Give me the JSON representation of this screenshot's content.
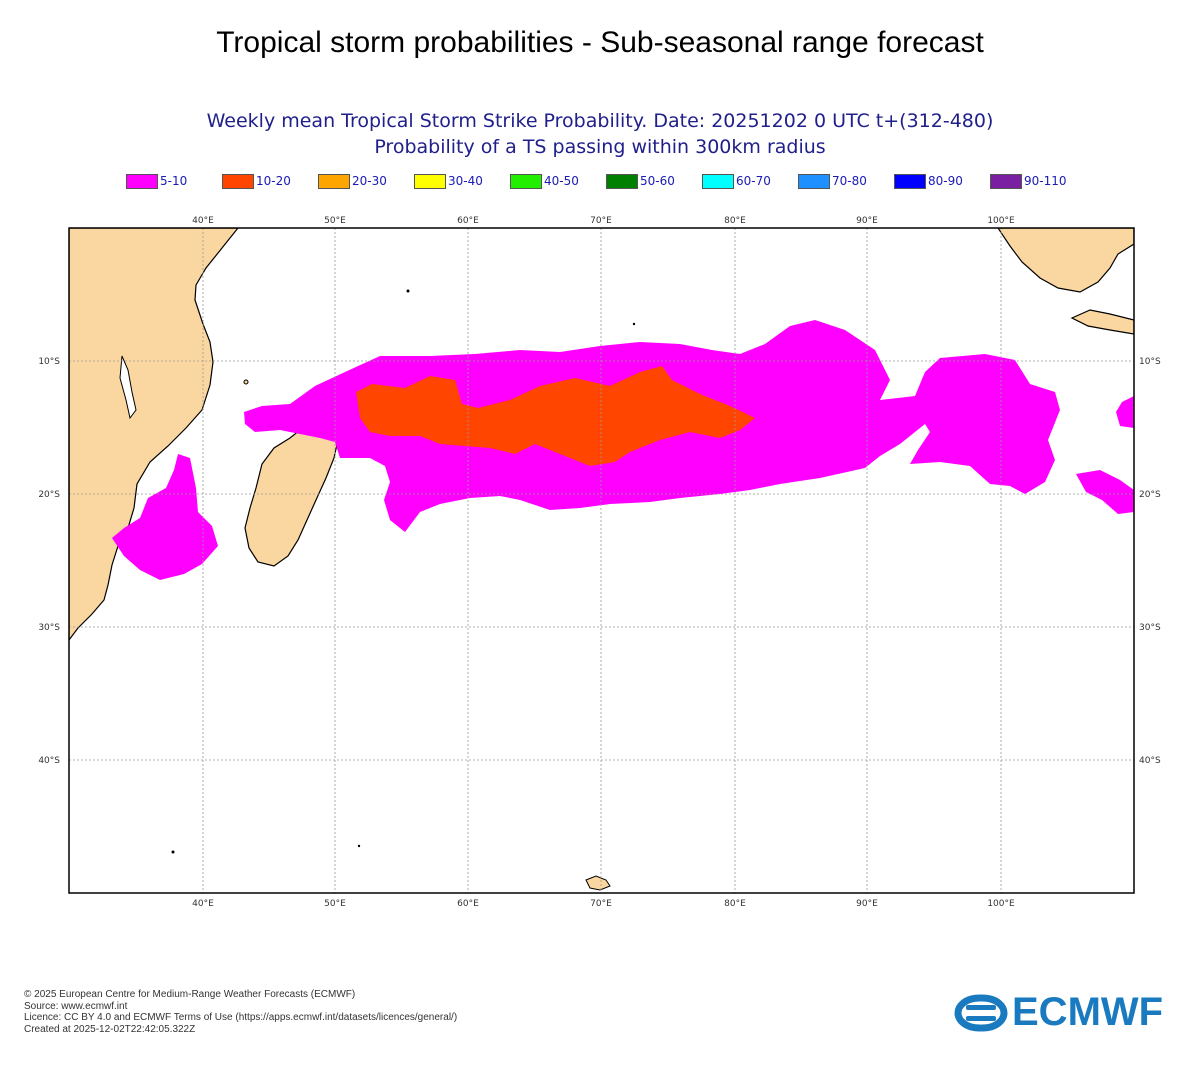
{
  "header": {
    "title": "Tropical storm probabilities - Sub-seasonal range forecast",
    "subtitle_line1": "Weekly mean Tropical Storm Strike Probability. Date: 20251202  0 UTC   t+(312-480)",
    "subtitle_line2": "Probability of a TS passing within  300km radius"
  },
  "legend": [
    {
      "label": "5-10",
      "color": "#ff00ff"
    },
    {
      "label": "10-20",
      "color": "#ff4500"
    },
    {
      "label": "20-30",
      "color": "#ffa500"
    },
    {
      "label": "30-40",
      "color": "#ffff00"
    },
    {
      "label": "40-50",
      "color": "#22ee00"
    },
    {
      "label": "50-60",
      "color": "#008000"
    },
    {
      "label": "60-70",
      "color": "#00ffff"
    },
    {
      "label": "70-80",
      "color": "#1e90ff"
    },
    {
      "label": "80-90",
      "color": "#0000ff"
    },
    {
      "label": "90-110",
      "color": "#7b1fa2"
    }
  ],
  "map": {
    "lon_ticks": [
      "40°E",
      "50°E",
      "60°E",
      "70°E",
      "80°E",
      "90°E",
      "100°E"
    ],
    "lat_ticks": [
      "10°S",
      "20°S",
      "30°S",
      "40°S"
    ],
    "land_color": "#fad7a1",
    "lon_range": [
      30,
      110
    ],
    "lat_range": [
      0,
      -50
    ],
    "regions": [
      {
        "name": "5-10",
        "color": "#ff00ff"
      },
      {
        "name": "10-20",
        "color": "#ff4500"
      }
    ]
  },
  "footer": {
    "line1": "© 2025 European Centre for Medium-Range Weather Forecasts (ECMWF)",
    "line2": "Source: www.ecmwf.int",
    "line3": "Licence: CC BY 4.0 and ECMWF Terms of Use (https://apps.ecmwf.int/datasets/licences/general/)",
    "line4": "Created at 2025-12-02T22:42:05.322Z"
  },
  "logo": {
    "text": "ECMWF",
    "color": "#1a7abf"
  }
}
